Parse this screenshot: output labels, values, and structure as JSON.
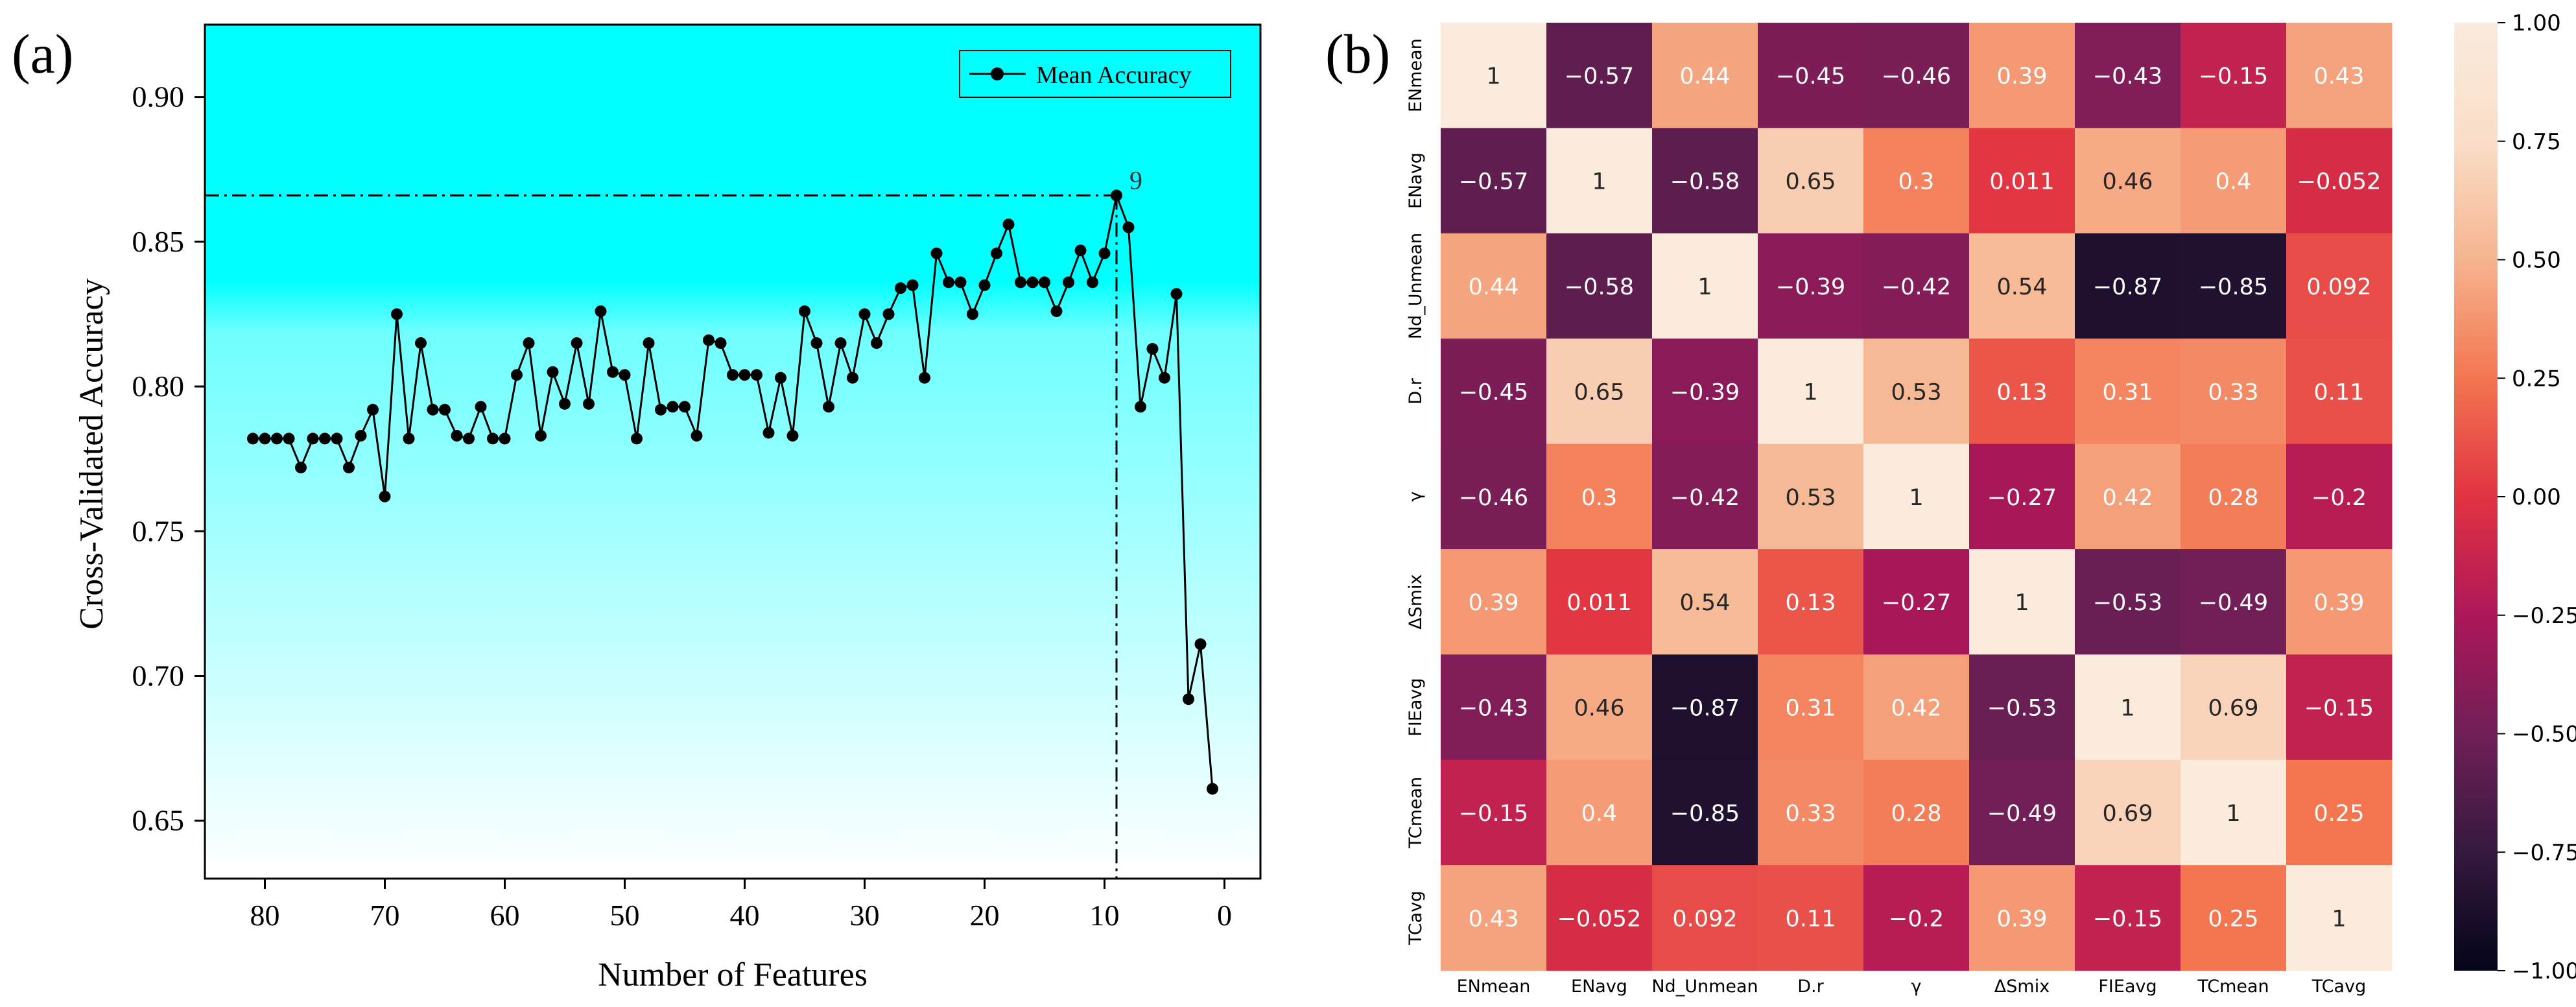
{
  "panels": {
    "a": {
      "tag": "(a)"
    },
    "b": {
      "tag": "(b)"
    }
  },
  "colors": {
    "background_top": "#00FFFF",
    "background_bottom": "#FFFFFF",
    "line": "#000000",
    "heatmap_colormap": "rocket",
    "heatmap_text_light": "#FFFFFF",
    "heatmap_text_dark": "#262626"
  },
  "chart_data": [
    {
      "type": "line",
      "title": "",
      "xlabel": "Number of Features",
      "ylabel": "Cross-Validated Accuracy",
      "xlim": [
        85,
        -3
      ],
      "ylim": [
        0.63,
        0.925
      ],
      "x_reversed": true,
      "x_ticks": [
        80,
        70,
        60,
        50,
        40,
        30,
        20,
        10,
        0
      ],
      "y_ticks": [
        0.65,
        0.7,
        0.75,
        0.8,
        0.85,
        0.9
      ],
      "y_tick_labels": [
        "0.65",
        "0.70",
        "0.75",
        "0.80",
        "0.85",
        "0.90"
      ],
      "legend": {
        "label": "Mean Accuracy",
        "position": "top-right"
      },
      "grid": false,
      "background": "gradient cyan (top) to white (bottom)",
      "annotation": {
        "label": "9",
        "x": 9,
        "y": 0.866,
        "reference_lines": "dash-dot horizontal and vertical through peak"
      },
      "series": [
        {
          "name": "Mean Accuracy",
          "x": [
            81,
            80,
            79,
            78,
            77,
            76,
            75,
            74,
            73,
            72,
            71,
            70,
            69,
            68,
            67,
            66,
            65,
            64,
            63,
            62,
            61,
            60,
            59,
            58,
            57,
            56,
            55,
            54,
            53,
            52,
            51,
            50,
            49,
            48,
            47,
            46,
            45,
            44,
            43,
            42,
            41,
            40,
            39,
            38,
            37,
            36,
            35,
            34,
            33,
            32,
            31,
            30,
            29,
            28,
            27,
            26,
            25,
            24,
            23,
            22,
            21,
            20,
            19,
            18,
            17,
            16,
            15,
            14,
            13,
            12,
            11,
            10,
            9,
            8,
            7,
            6,
            5,
            4,
            3,
            2,
            1
          ],
          "y": [
            0.782,
            0.782,
            0.782,
            0.782,
            0.772,
            0.782,
            0.782,
            0.782,
            0.772,
            0.783,
            0.792,
            0.762,
            0.825,
            0.782,
            0.815,
            0.792,
            0.792,
            0.783,
            0.782,
            0.793,
            0.782,
            0.782,
            0.804,
            0.815,
            0.783,
            0.805,
            0.794,
            0.815,
            0.794,
            0.826,
            0.805,
            0.804,
            0.782,
            0.815,
            0.792,
            0.793,
            0.793,
            0.783,
            0.816,
            0.815,
            0.804,
            0.804,
            0.804,
            0.784,
            0.803,
            0.783,
            0.826,
            0.815,
            0.793,
            0.815,
            0.803,
            0.825,
            0.815,
            0.825,
            0.834,
            0.835,
            0.803,
            0.846,
            0.836,
            0.836,
            0.825,
            0.835,
            0.846,
            0.856,
            0.836,
            0.836,
            0.836,
            0.826,
            0.836,
            0.847,
            0.836,
            0.846,
            0.866,
            0.855,
            0.793,
            0.813,
            0.803,
            0.832,
            0.692,
            0.711,
            0.661
          ]
        }
      ]
    },
    {
      "type": "heatmap",
      "title": "",
      "row_labels": [
        "ENmean",
        "ENavg",
        "Nd_Unmean",
        "D.r",
        "γ",
        "ΔSmix",
        "FIEavg",
        "TCmean",
        "TCavg"
      ],
      "col_labels": [
        "ENmean",
        "ENavg",
        "Nd_Unmean",
        "D.r",
        "γ",
        "ΔSmix",
        "FIEavg",
        "TCmean",
        "TCavg"
      ],
      "values": [
        [
          1,
          -0.57,
          0.44,
          -0.45,
          -0.46,
          0.39,
          -0.43,
          -0.15,
          0.43
        ],
        [
          -0.57,
          1,
          -0.58,
          0.65,
          0.3,
          0.011,
          0.46,
          0.4,
          -0.052
        ],
        [
          0.44,
          -0.58,
          1,
          -0.39,
          -0.42,
          0.54,
          -0.87,
          -0.85,
          0.092
        ],
        [
          -0.45,
          0.65,
          -0.39,
          1,
          0.53,
          0.13,
          0.31,
          0.33,
          0.11
        ],
        [
          -0.46,
          0.3,
          -0.42,
          0.53,
          1,
          -0.27,
          0.42,
          0.28,
          -0.2
        ],
        [
          0.39,
          0.011,
          0.54,
          0.13,
          -0.27,
          1,
          -0.53,
          -0.49,
          0.39
        ],
        [
          -0.43,
          0.46,
          -0.87,
          0.31,
          0.42,
          -0.53,
          1,
          0.69,
          -0.15
        ],
        [
          -0.15,
          0.4,
          -0.85,
          0.33,
          0.28,
          -0.49,
          0.69,
          1,
          0.25
        ],
        [
          0.43,
          -0.052,
          0.092,
          0.11,
          -0.2,
          0.39,
          -0.15,
          0.25,
          1
        ]
      ],
      "cell_labels": [
        [
          "1",
          "−0.57",
          "0.44",
          "−0.45",
          "−0.46",
          "0.39",
          "−0.43",
          "−0.15",
          "0.43"
        ],
        [
          "−0.57",
          "1",
          "−0.58",
          "0.65",
          "0.3",
          "0.011",
          "0.46",
          "0.4",
          "−0.052"
        ],
        [
          "0.44",
          "−0.58",
          "1",
          "−0.39",
          "−0.42",
          "0.54",
          "−0.87",
          "−0.85",
          "0.092"
        ],
        [
          "−0.45",
          "0.65",
          "−0.39",
          "1",
          "0.53",
          "0.13",
          "0.31",
          "0.33",
          "0.11"
        ],
        [
          "−0.46",
          "0.3",
          "−0.42",
          "0.53",
          "1",
          "−0.27",
          "0.42",
          "0.28",
          "−0.2"
        ],
        [
          "0.39",
          "0.011",
          "0.54",
          "0.13",
          "−0.27",
          "1",
          "−0.53",
          "−0.49",
          "0.39"
        ],
        [
          "−0.43",
          "0.46",
          "−0.87",
          "0.31",
          "0.42",
          "−0.53",
          "1",
          "0.69",
          "−0.15"
        ],
        [
          "−0.15",
          "0.4",
          "−0.85",
          "0.33",
          "0.28",
          "−0.49",
          "0.69",
          "1",
          "0.25"
        ],
        [
          "0.43",
          "−0.052",
          "0.092",
          "0.11",
          "−0.2",
          "0.39",
          "−0.15",
          "0.25",
          "1"
        ]
      ],
      "colorbar": {
        "range": [
          -1,
          1
        ],
        "ticks": [
          1.0,
          0.75,
          0.5,
          0.25,
          0.0,
          -0.25,
          -0.5,
          -0.75,
          -1.0
        ],
        "tick_labels": [
          "1.00",
          "0.75",
          "0.50",
          "0.25",
          "0.00",
          "−0.25",
          "−0.50",
          "−0.75",
          "−1.00"
        ],
        "position": "right"
      }
    }
  ]
}
